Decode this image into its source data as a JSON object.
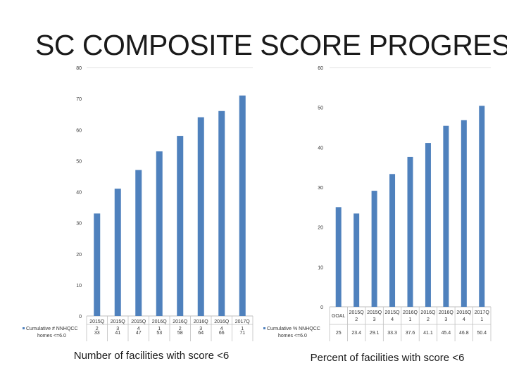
{
  "title": "SC COMPOSITE SCORE PROGRESS",
  "colors": {
    "bar": "#4f81bd",
    "axis": "#bfbfbf",
    "grid": "#d9d9d9",
    "text": "#333333"
  },
  "chart_data": [
    {
      "type": "bar",
      "categories": [
        "2015Q2",
        "2015Q3",
        "2015Q4",
        "2016Q1",
        "2016Q2",
        "2016Q3",
        "2016Q4",
        "2017Q1"
      ],
      "series": [
        {
          "name": "Cumulative # NNHQCC homes <=6.0",
          "values": [
            33,
            41,
            47,
            53,
            58,
            64,
            66,
            71
          ]
        }
      ],
      "ylim": [
        0,
        80
      ],
      "yticks": [
        0,
        10,
        20,
        30,
        40,
        50,
        60,
        70,
        80
      ],
      "grid": false,
      "legend": "data-table",
      "caption": "Number of facilities with score <6"
    },
    {
      "type": "bar",
      "categories": [
        "GOAL",
        "2015Q2",
        "2015Q3",
        "2015Q4",
        "2016Q1",
        "2016Q2",
        "2016Q3",
        "2016Q4",
        "2017Q1"
      ],
      "series": [
        {
          "name": "Cumulative % NNHQCC homes <=6.0",
          "values": [
            25,
            23.4,
            29.1,
            33.3,
            37.6,
            41.1,
            45.4,
            46.8,
            50.4
          ]
        }
      ],
      "ylim": [
        0,
        60
      ],
      "yticks": [
        0,
        10,
        20,
        30,
        40,
        50,
        60
      ],
      "grid": false,
      "legend": "data-table",
      "caption": "Percent of facilities with score <6"
    }
  ]
}
